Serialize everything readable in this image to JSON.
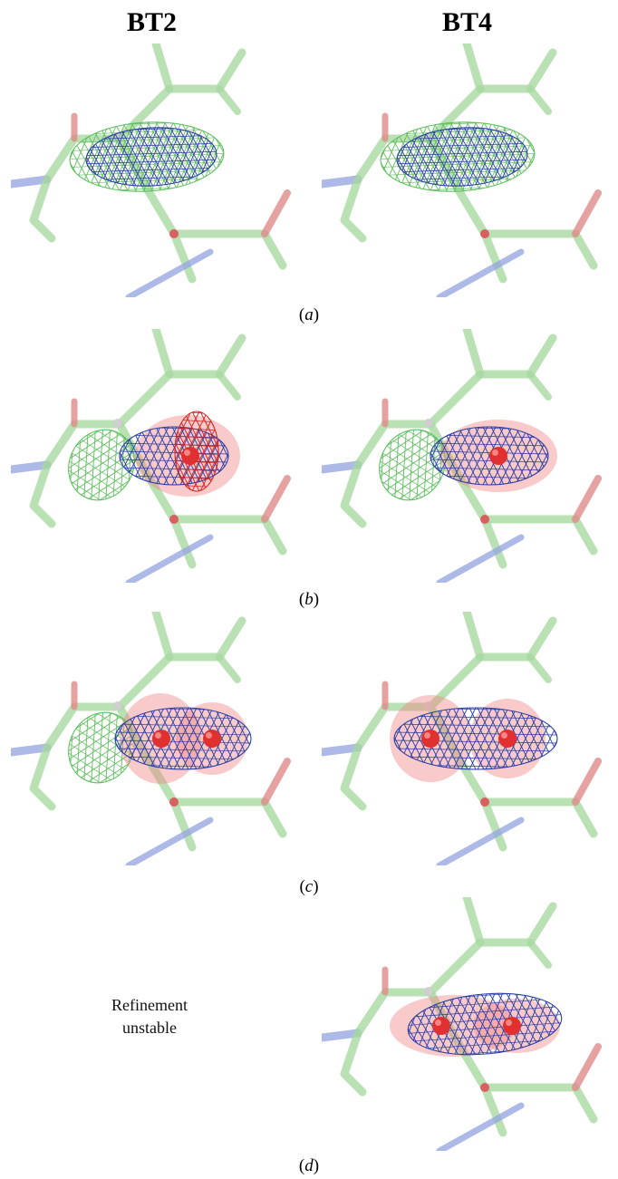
{
  "columns": {
    "left": "BT2",
    "right": "BT4"
  },
  "captions": {
    "a": "a",
    "b": "b",
    "c": "c",
    "d": "d"
  },
  "note": {
    "line1": "Refinement",
    "line2": "unstable"
  },
  "colors": {
    "carbon_stick": "#a8d9a0",
    "nitrogen_stick": "#98a8e0",
    "oxygen_stick": "#e08a8a",
    "mesh_green": "#5fbf5f",
    "mesh_blue": "#2b3ea6",
    "mesh_red": "#d42020",
    "ellipsoid": "#f08a8a",
    "atom": "#e03030"
  }
}
